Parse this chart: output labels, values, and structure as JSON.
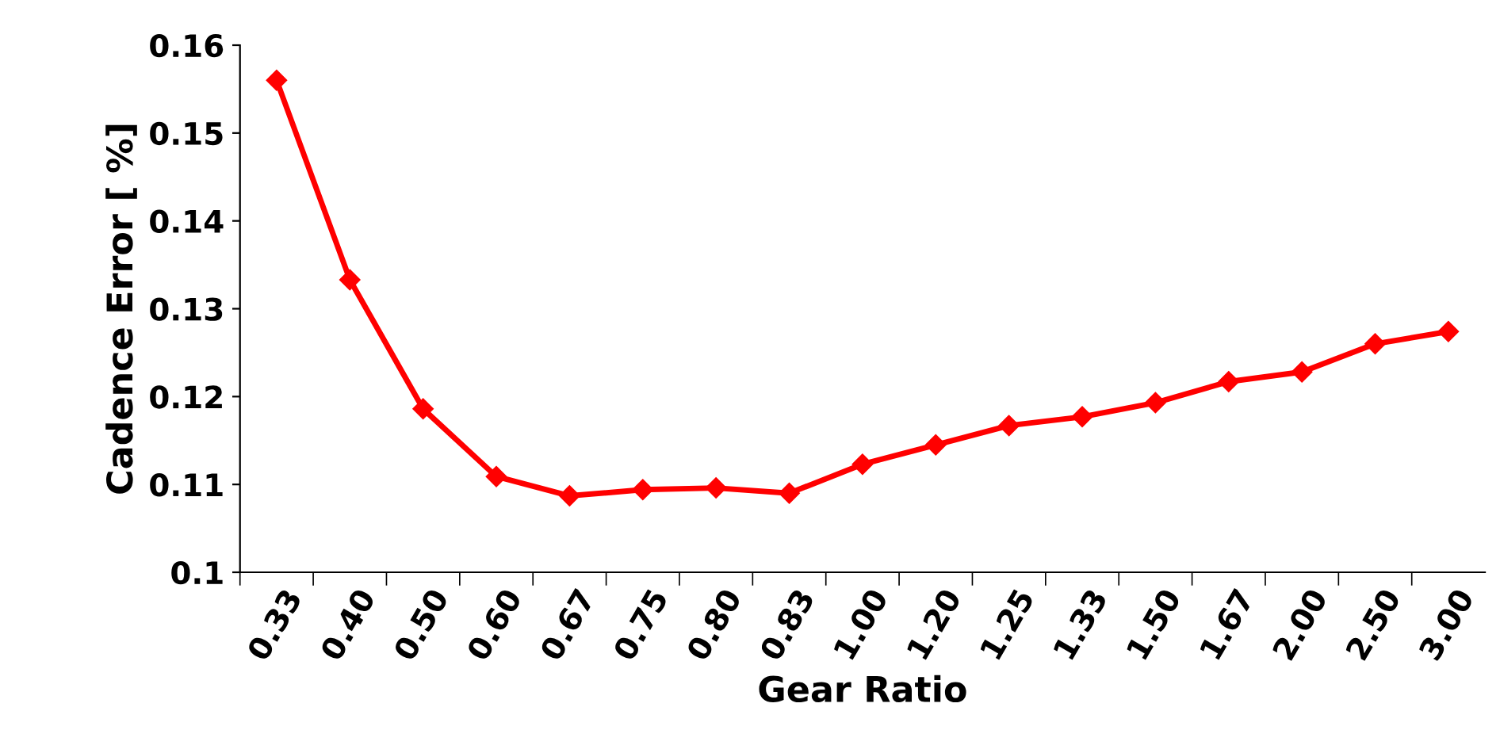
{
  "chart_data": {
    "type": "line",
    "xlabel": "Gear Ratio",
    "ylabel": "Cadence Error [ %]",
    "categories": [
      "0.33",
      "0.40",
      "0.50",
      "0.60",
      "0.67",
      "0.75",
      "0.80",
      "0.83",
      "1.00",
      "1.20",
      "1.25",
      "1.33",
      "1.50",
      "1.67",
      "2.00",
      "2.50",
      "3.00"
    ],
    "series": [
      {
        "color": "#ff0000",
        "values": [
          0.156,
          0.1333,
          0.1186,
          0.1109,
          0.1087,
          0.1094,
          0.1096,
          0.109,
          0.1123,
          0.1145,
          0.1167,
          0.1177,
          0.1193,
          0.1217,
          0.1228,
          0.126,
          0.1274
        ]
      }
    ],
    "ylim": [
      0.1,
      0.16
    ],
    "yticks": [
      0.1,
      0.11,
      0.12,
      0.13,
      0.14,
      0.15,
      0.16
    ],
    "grid": false,
    "legend": false,
    "marker": "diamond",
    "line_style": "solid"
  }
}
